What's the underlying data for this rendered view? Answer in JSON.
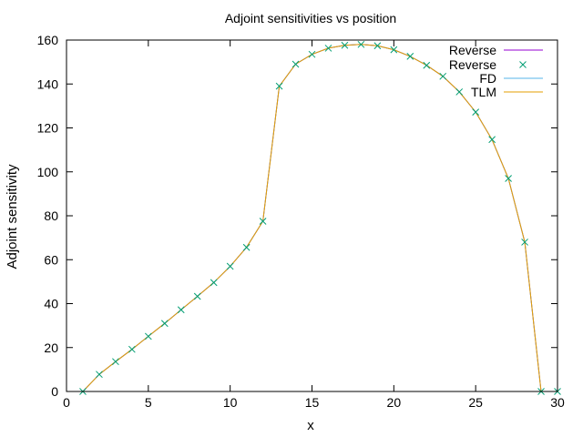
{
  "chart_data": {
    "type": "line",
    "title": "Adjoint sensitivities vs position",
    "xlabel": "x",
    "ylabel": "Adjoint sensitivity",
    "xlim": [
      0,
      30
    ],
    "ylim": [
      0,
      160
    ],
    "xticks": [
      0,
      5,
      10,
      15,
      20,
      25,
      30
    ],
    "yticks": [
      0,
      20,
      40,
      60,
      80,
      100,
      120,
      140,
      160
    ],
    "grid": false,
    "legend_position": "top-right",
    "x": [
      1,
      2,
      3,
      4,
      5,
      6,
      7,
      8,
      9,
      10,
      11,
      12,
      13,
      14,
      15,
      16,
      17,
      18,
      19,
      20,
      21,
      22,
      23,
      24,
      25,
      26,
      27,
      28,
      29,
      30
    ],
    "series": [
      {
        "name": "Reverse",
        "style": "line",
        "color": "#9400d3",
        "values": [
          0,
          7.8,
          13.6,
          19.2,
          25.1,
          31.0,
          37.2,
          43.3,
          49.6,
          57.0,
          65.6,
          77.5,
          139.0,
          149.0,
          153.5,
          156.3,
          157.6,
          158.0,
          157.4,
          155.6,
          152.6,
          148.5,
          143.5,
          136.4,
          127.2,
          114.7,
          97.0,
          68.0,
          0,
          0
        ]
      },
      {
        "name": "Reverse",
        "style": "points",
        "color": "#009e73",
        "values": [
          0,
          7.8,
          13.6,
          19.2,
          25.1,
          31.0,
          37.2,
          43.3,
          49.6,
          57.0,
          65.6,
          77.5,
          139.0,
          149.0,
          153.5,
          156.3,
          157.6,
          158.0,
          157.4,
          155.6,
          152.6,
          148.5,
          143.5,
          136.4,
          127.2,
          114.7,
          97.0,
          68.0,
          0,
          0
        ]
      },
      {
        "name": "FD",
        "style": "line",
        "color": "#56b4e9",
        "values": [
          0,
          7.8,
          13.6,
          19.2,
          25.1,
          31.0,
          37.2,
          43.3,
          49.6,
          57.0,
          65.6,
          77.5,
          139.0,
          149.0,
          153.5,
          156.3,
          157.6,
          158.0,
          157.4,
          155.6,
          152.6,
          148.5,
          143.5,
          136.4,
          127.2,
          114.7,
          97.0,
          68.0,
          0,
          0
        ]
      },
      {
        "name": "TLM",
        "style": "line",
        "color": "#e69f00",
        "values": [
          0,
          7.8,
          13.6,
          19.2,
          25.1,
          31.0,
          37.2,
          43.3,
          49.6,
          57.0,
          65.6,
          77.5,
          139.0,
          149.0,
          153.5,
          156.3,
          157.6,
          158.0,
          157.4,
          155.6,
          152.6,
          148.5,
          143.5,
          136.4,
          127.2,
          114.7,
          97.0,
          68.0,
          0,
          0
        ]
      }
    ]
  }
}
